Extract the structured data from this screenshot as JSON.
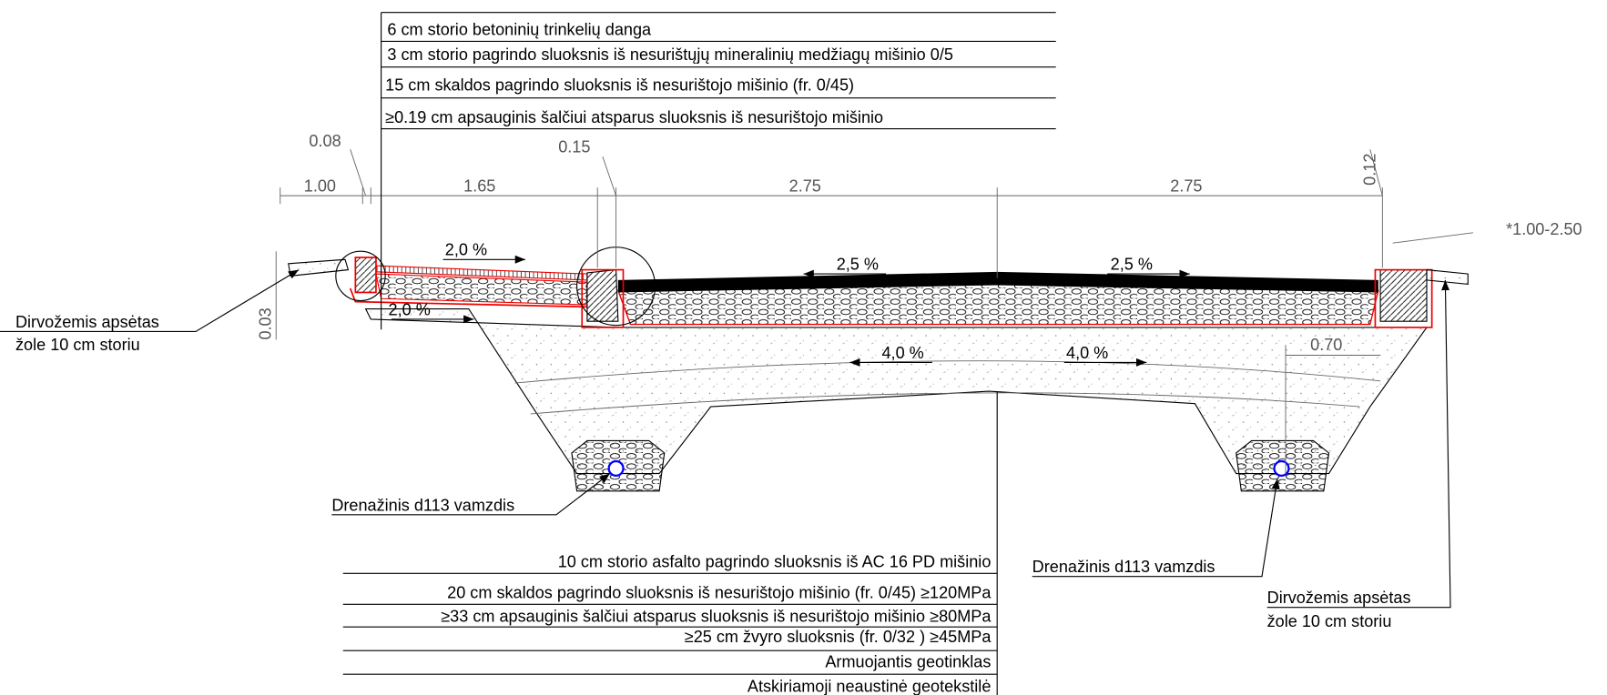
{
  "top_layers": [
    "6 cm storio betoninių trinkelių danga",
    "3 cm storio pagrindo sluoksnis iš nesurištųjų mineralinių medžiagų mišinio 0/5",
    "15 cm skaldos pagrindo sluoksnis iš nesurištojo mišinio (fr. 0/45)",
    "≥0.19 cm apsauginis šalčiui atsparus sluoksnis iš nesurištojo mišinio"
  ],
  "bottom_layers": [
    "10 cm storio asfalto pagrindo sluoksnis iš AC 16 PD mišinio",
    "20 cm skaldos pagrindo sluoksnis iš nesurištojo mišinio (fr. 0/45) ≥120MPa",
    "≥33 cm apsauginis šalčiui atsparus sluoksnis iš nesurištojo mišinio ≥80MPa",
    "≥25 cm žvyro sluoksnis (fr. 0/32 ) ≥45MPa",
    "Armuojantis geotinklas",
    "Atskiriamoji neaustinė geotekstilė"
  ],
  "dimensions": [
    "0.08",
    "1.00",
    "1.65",
    "0.15",
    "2.75",
    "2.75",
    "0.12",
    "*1.00-2.50",
    "0.03",
    "0.70"
  ],
  "slopes": [
    "2,0 %",
    "2,0 %",
    "2,5 %",
    "2,5 %",
    "4,0 %",
    "4,0 %"
  ],
  "notes": {
    "soil_left": [
      "Dirvožemis apsėtas",
      "žole 10 cm storiu"
    ],
    "drain_left": "Drenažinis d113 vamzdis",
    "drain_right": "Drenažinis d113 vamzdis",
    "soil_right": [
      "Dirvožemis apsėtas",
      "žole 10 cm storiu"
    ]
  }
}
